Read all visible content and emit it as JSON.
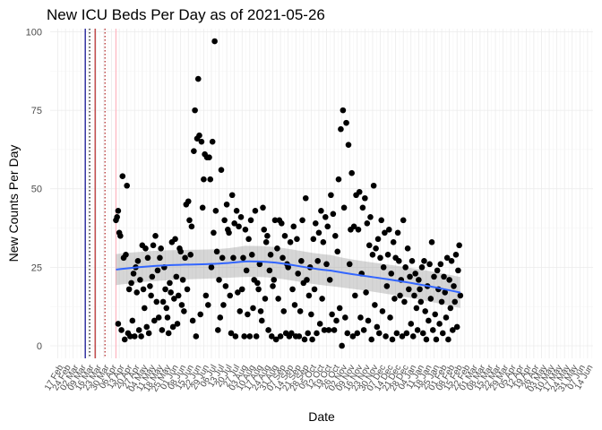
{
  "chart_data": {
    "type": "scatter",
    "title": "New ICU Beds Per Day as of 2021-05-26",
    "xlabel": "Date",
    "ylabel": "New Counts Per Day",
    "ylim": [
      -4,
      101
    ],
    "xlim": [
      "2020-02-10",
      "2021-06-19"
    ],
    "grid": true,
    "y_ticks": [
      0,
      25,
      50,
      75,
      100
    ],
    "x_tick_labels": [
      "17 Feb",
      "24 Feb",
      "02 Mar",
      "09 Mar",
      "16 Mar",
      "23 Mar",
      "30 Mar",
      "06 Apr",
      "13 Apr",
      "20 Apr",
      "27 Apr",
      "04 May",
      "11 May",
      "18 May",
      "25 May",
      "01 Jun",
      "08 Jun",
      "15 Jun",
      "22 Jun",
      "29 Jun",
      "06 Jul",
      "13 Jul",
      "20 Jul",
      "27 Jul",
      "03 Aug",
      "10 Aug",
      "17 Aug",
      "24 Aug",
      "31 Aug",
      "07 Sep",
      "14 Sep",
      "21 Sep",
      "28 Sep",
      "05 Oct",
      "12 Oct",
      "19 Oct",
      "26 Oct",
      "02 Nov",
      "09 Nov",
      "16 Nov",
      "23 Nov",
      "30 Nov",
      "07 Dec",
      "14 Dec",
      "21 Dec",
      "28 Dec",
      "04 Jan",
      "11 Jan",
      "18 Jan",
      "25 Jan",
      "01 Feb",
      "08 Feb",
      "15 Feb",
      "22 Feb",
      "01 Mar",
      "08 Mar",
      "15 Mar",
      "22 Mar",
      "29 Mar",
      "05 Apr",
      "12 Apr",
      "19 Apr",
      "26 Apr",
      "03 May",
      "10 May",
      "17 May",
      "24 May",
      "31 May",
      "07 Jun",
      "14 Jun"
    ],
    "vlines": [
      {
        "date": "2020-03-13",
        "color": "#00008b",
        "style": "solid"
      },
      {
        "date": "2020-03-17",
        "color": "#000000",
        "style": "dotted"
      },
      {
        "date": "2020-03-22",
        "color": "#b22222",
        "style": "solid"
      },
      {
        "date": "2020-03-31",
        "color": "#b22222",
        "style": "dotted"
      },
      {
        "date": "2020-04-10",
        "color": "#ffb6c1",
        "style": "solid"
      }
    ],
    "points": [
      [
        "2020-04-10",
        40
      ],
      [
        "2020-04-11",
        41
      ],
      [
        "2020-04-12",
        43
      ],
      [
        "2020-04-13",
        36
      ],
      [
        "2020-04-14",
        35
      ],
      [
        "2020-04-12",
        7
      ],
      [
        "2020-04-15",
        5
      ],
      [
        "2020-04-16",
        54
      ],
      [
        "2020-04-17",
        28
      ],
      [
        "2020-04-18",
        2
      ],
      [
        "2020-04-19",
        29
      ],
      [
        "2020-04-20",
        51
      ],
      [
        "2020-04-21",
        4
      ],
      [
        "2020-04-22",
        18
      ],
      [
        "2020-04-23",
        3
      ],
      [
        "2020-04-24",
        20
      ],
      [
        "2020-04-25",
        8
      ],
      [
        "2020-04-26",
        23
      ],
      [
        "2020-04-27",
        3
      ],
      [
        "2020-04-28",
        25
      ],
      [
        "2020-04-29",
        17
      ],
      [
        "2020-04-30",
        27
      ],
      [
        "2020-05-01",
        5
      ],
      [
        "2020-05-02",
        21
      ],
      [
        "2020-05-03",
        3
      ],
      [
        "2020-05-04",
        32
      ],
      [
        "2020-05-05",
        18
      ],
      [
        "2020-05-06",
        12
      ],
      [
        "2020-05-07",
        31
      ],
      [
        "2020-05-08",
        6
      ],
      [
        "2020-05-09",
        28
      ],
      [
        "2020-05-10",
        4
      ],
      [
        "2020-05-11",
        19
      ],
      [
        "2020-05-12",
        16
      ],
      [
        "2020-05-13",
        22
      ],
      [
        "2020-05-14",
        32
      ],
      [
        "2020-05-15",
        8
      ],
      [
        "2020-05-16",
        35
      ],
      [
        "2020-05-17",
        14
      ],
      [
        "2020-05-18",
        24
      ],
      [
        "2020-05-19",
        9
      ],
      [
        "2020-05-20",
        28
      ],
      [
        "2020-05-21",
        31
      ],
      [
        "2020-05-22",
        5
      ],
      [
        "2020-05-23",
        14
      ],
      [
        "2020-05-24",
        25
      ],
      [
        "2020-05-25",
        18
      ],
      [
        "2020-05-26",
        12
      ],
      [
        "2020-05-27",
        9
      ],
      [
        "2020-05-28",
        4
      ],
      [
        "2020-05-29",
        20
      ],
      [
        "2020-05-30",
        17
      ],
      [
        "2020-05-31",
        33
      ],
      [
        "2020-06-01",
        6
      ],
      [
        "2020-06-02",
        15
      ],
      [
        "2020-06-03",
        34
      ],
      [
        "2020-06-04",
        22
      ],
      [
        "2020-06-05",
        7
      ],
      [
        "2020-06-06",
        16
      ],
      [
        "2020-06-07",
        31
      ],
      [
        "2020-06-08",
        30
      ],
      [
        "2020-06-09",
        13
      ],
      [
        "2020-06-10",
        21
      ],
      [
        "2020-06-11",
        11
      ],
      [
        "2020-06-12",
        28
      ],
      [
        "2020-06-13",
        45
      ],
      [
        "2020-06-14",
        18
      ],
      [
        "2020-06-15",
        46
      ],
      [
        "2020-06-16",
        40
      ],
      [
        "2020-06-17",
        29
      ],
      [
        "2020-06-18",
        38
      ],
      [
        "2020-06-19",
        8
      ],
      [
        "2020-06-20",
        62
      ],
      [
        "2020-06-21",
        75
      ],
      [
        "2020-06-22",
        3
      ],
      [
        "2020-06-23",
        66
      ],
      [
        "2020-06-24",
        85
      ],
      [
        "2020-06-25",
        67
      ],
      [
        "2020-06-26",
        10
      ],
      [
        "2020-06-27",
        65
      ],
      [
        "2020-06-28",
        44
      ],
      [
        "2020-06-29",
        53
      ],
      [
        "2020-06-30",
        61
      ],
      [
        "2020-07-01",
        16
      ],
      [
        "2020-07-02",
        60
      ],
      [
        "2020-07-03",
        13
      ],
      [
        "2020-07-04",
        60
      ],
      [
        "2020-07-05",
        53
      ],
      [
        "2020-07-06",
        25
      ],
      [
        "2020-07-07",
        65
      ],
      [
        "2020-07-08",
        36
      ],
      [
        "2020-07-09",
        97
      ],
      [
        "2020-07-10",
        43
      ],
      [
        "2020-07-11",
        30
      ],
      [
        "2020-07-12",
        5
      ],
      [
        "2020-07-13",
        21
      ],
      [
        "2020-07-14",
        9
      ],
      [
        "2020-07-15",
        56
      ],
      [
        "2020-07-16",
        28
      ],
      [
        "2020-07-17",
        13
      ],
      [
        "2020-07-18",
        40
      ],
      [
        "2020-07-19",
        19
      ],
      [
        "2020-07-20",
        45
      ],
      [
        "2020-07-21",
        37
      ],
      [
        "2020-07-22",
        36
      ],
      [
        "2020-07-23",
        16
      ],
      [
        "2020-07-24",
        4
      ],
      [
        "2020-07-25",
        48
      ],
      [
        "2020-07-26",
        28
      ],
      [
        "2020-07-27",
        39
      ],
      [
        "2020-07-28",
        3
      ],
      [
        "2020-07-29",
        43
      ],
      [
        "2020-07-30",
        17
      ],
      [
        "2020-07-31",
        38
      ],
      [
        "2020-08-01",
        11
      ],
      [
        "2020-08-02",
        41
      ],
      [
        "2020-08-03",
        18
      ],
      [
        "2020-08-04",
        28
      ],
      [
        "2020-08-05",
        3
      ],
      [
        "2020-08-06",
        37
      ],
      [
        "2020-08-07",
        24
      ],
      [
        "2020-08-08",
        10
      ],
      [
        "2020-08-09",
        34
      ],
      [
        "2020-08-10",
        3
      ],
      [
        "2020-08-11",
        40
      ],
      [
        "2020-08-12",
        29
      ],
      [
        "2020-08-13",
        12
      ],
      [
        "2020-08-14",
        21
      ],
      [
        "2020-08-15",
        43
      ],
      [
        "2020-08-16",
        3
      ],
      [
        "2020-08-17",
        20
      ],
      [
        "2020-08-18",
        18
      ],
      [
        "2020-08-19",
        26
      ],
      [
        "2020-08-20",
        11
      ],
      [
        "2020-08-21",
        8
      ],
      [
        "2020-08-22",
        44
      ],
      [
        "2020-08-23",
        37
      ],
      [
        "2020-08-24",
        15
      ],
      [
        "2020-08-25",
        33
      ],
      [
        "2020-08-26",
        35
      ],
      [
        "2020-08-27",
        5
      ],
      [
        "2020-08-28",
        24
      ],
      [
        "2020-08-29",
        29
      ],
      [
        "2020-08-30",
        3
      ],
      [
        "2020-08-31",
        19
      ],
      [
        "2020-09-01",
        21
      ],
      [
        "2020-09-02",
        40
      ],
      [
        "2020-09-03",
        2
      ],
      [
        "2020-09-04",
        31
      ],
      [
        "2020-09-05",
        15
      ],
      [
        "2020-09-06",
        40
      ],
      [
        "2020-09-07",
        3
      ],
      [
        "2020-09-08",
        39
      ],
      [
        "2020-09-09",
        28
      ],
      [
        "2020-09-10",
        11
      ],
      [
        "2020-09-11",
        35
      ],
      [
        "2020-09-12",
        4
      ],
      [
        "2020-09-13",
        26
      ],
      [
        "2020-09-14",
        25
      ],
      [
        "2020-09-15",
        3
      ],
      [
        "2020-09-16",
        33
      ],
      [
        "2020-09-17",
        4
      ],
      [
        "2020-09-18",
        18
      ],
      [
        "2020-09-19",
        38
      ],
      [
        "2020-09-20",
        13
      ],
      [
        "2020-09-21",
        3
      ],
      [
        "2020-09-22",
        34
      ],
      [
        "2020-09-23",
        23
      ],
      [
        "2020-09-24",
        3
      ],
      [
        "2020-09-25",
        11
      ],
      [
        "2020-09-26",
        27
      ],
      [
        "2020-09-27",
        40
      ],
      [
        "2020-09-28",
        20
      ],
      [
        "2020-09-29",
        2
      ],
      [
        "2020-09-30",
        47
      ],
      [
        "2020-10-01",
        21
      ],
      [
        "2020-10-02",
        4
      ],
      [
        "2020-10-03",
        16
      ],
      [
        "2020-10-04",
        25
      ],
      [
        "2020-10-05",
        10
      ],
      [
        "2020-10-06",
        2
      ],
      [
        "2020-10-07",
        34
      ],
      [
        "2020-10-08",
        18
      ],
      [
        "2020-10-09",
        39
      ],
      [
        "2020-10-10",
        4
      ],
      [
        "2020-10-11",
        27
      ],
      [
        "2020-10-12",
        36
      ],
      [
        "2020-10-13",
        7
      ],
      [
        "2020-10-14",
        43
      ],
      [
        "2020-10-15",
        15
      ],
      [
        "2020-10-16",
        33
      ],
      [
        "2020-10-17",
        5
      ],
      [
        "2020-10-18",
        41
      ],
      [
        "2020-10-19",
        26
      ],
      [
        "2020-10-20",
        38
      ],
      [
        "2020-10-21",
        5
      ],
      [
        "2020-10-22",
        21
      ],
      [
        "2020-10-23",
        48
      ],
      [
        "2020-10-24",
        10
      ],
      [
        "2020-10-25",
        42
      ],
      [
        "2020-10-26",
        5
      ],
      [
        "2020-10-27",
        35
      ],
      [
        "2020-10-28",
        8
      ],
      [
        "2020-10-29",
        30
      ],
      [
        "2020-10-30",
        53
      ],
      [
        "2020-10-31",
        12
      ],
      [
        "2020-11-01",
        69
      ],
      [
        "2020-11-02",
        0
      ],
      [
        "2020-11-03",
        75
      ],
      [
        "2020-11-04",
        44
      ],
      [
        "2020-11-05",
        9
      ],
      [
        "2020-11-06",
        71
      ],
      [
        "2020-11-07",
        4
      ],
      [
        "2020-11-08",
        64
      ],
      [
        "2020-11-09",
        26
      ],
      [
        "2020-11-10",
        37
      ],
      [
        "2020-11-11",
        55
      ],
      [
        "2020-11-12",
        3
      ],
      [
        "2020-11-13",
        38
      ],
      [
        "2020-11-14",
        16
      ],
      [
        "2020-11-15",
        48
      ],
      [
        "2020-11-16",
        4
      ],
      [
        "2020-11-17",
        37
      ],
      [
        "2020-11-18",
        49
      ],
      [
        "2020-11-19",
        9
      ],
      [
        "2020-11-20",
        23
      ],
      [
        "2020-11-21",
        44
      ],
      [
        "2020-11-22",
        5
      ],
      [
        "2020-11-23",
        47
      ],
      [
        "2020-11-24",
        17
      ],
      [
        "2020-11-25",
        39
      ],
      [
        "2020-11-26",
        8
      ],
      [
        "2020-11-27",
        32
      ],
      [
        "2020-11-28",
        41
      ],
      [
        "2020-11-29",
        2
      ],
      [
        "2020-11-30",
        29
      ],
      [
        "2020-12-01",
        51
      ],
      [
        "2020-12-02",
        13
      ],
      [
        "2020-12-03",
        31
      ],
      [
        "2020-12-04",
        6
      ],
      [
        "2020-12-05",
        34
      ],
      [
        "2020-12-06",
        4
      ],
      [
        "2020-12-07",
        28
      ],
      [
        "2020-12-08",
        40
      ],
      [
        "2020-12-09",
        11
      ],
      [
        "2020-12-10",
        25
      ],
      [
        "2020-12-11",
        36
      ],
      [
        "2020-12-12",
        3
      ],
      [
        "2020-12-13",
        19
      ],
      [
        "2020-12-14",
        29
      ],
      [
        "2020-12-15",
        37
      ],
      [
        "2020-12-16",
        9
      ],
      [
        "2020-12-17",
        23
      ],
      [
        "2020-12-18",
        2
      ],
      [
        "2020-12-19",
        33
      ],
      [
        "2020-12-20",
        15
      ],
      [
        "2020-12-21",
        28
      ],
      [
        "2020-12-22",
        4
      ],
      [
        "2020-12-23",
        36
      ],
      [
        "2020-12-24",
        27
      ],
      [
        "2020-12-25",
        16
      ],
      [
        "2020-12-26",
        21
      ],
      [
        "2020-12-27",
        3
      ],
      [
        "2020-12-28",
        40
      ],
      [
        "2020-12-29",
        14
      ],
      [
        "2020-12-30",
        25
      ],
      [
        "2020-12-31",
        4
      ],
      [
        "2021-01-01",
        31
      ],
      [
        "2021-01-02",
        18
      ],
      [
        "2021-01-03",
        22
      ],
      [
        "2021-01-04",
        7
      ],
      [
        "2021-01-05",
        27
      ],
      [
        "2021-01-06",
        3
      ],
      [
        "2021-01-07",
        16
      ],
      [
        "2021-01-08",
        23
      ],
      [
        "2021-01-09",
        12
      ],
      [
        "2021-01-10",
        5
      ],
      [
        "2021-01-11",
        21
      ],
      [
        "2021-01-12",
        18
      ],
      [
        "2021-01-13",
        14
      ],
      [
        "2021-01-14",
        25
      ],
      [
        "2021-01-15",
        4
      ],
      [
        "2021-01-16",
        27
      ],
      [
        "2021-01-17",
        11
      ],
      [
        "2021-01-18",
        2
      ],
      [
        "2021-01-19",
        19
      ],
      [
        "2021-01-20",
        8
      ],
      [
        "2021-01-21",
        26
      ],
      [
        "2021-01-22",
        15
      ],
      [
        "2021-01-23",
        33
      ],
      [
        "2021-01-24",
        5
      ],
      [
        "2021-01-25",
        22
      ],
      [
        "2021-01-26",
        10
      ],
      [
        "2021-01-27",
        2
      ],
      [
        "2021-01-28",
        24
      ],
      [
        "2021-01-29",
        18
      ],
      [
        "2021-01-30",
        7
      ],
      [
        "2021-01-31",
        26
      ],
      [
        "2021-02-01",
        14
      ],
      [
        "2021-02-02",
        4
      ],
      [
        "2021-02-03",
        22
      ],
      [
        "2021-02-04",
        17
      ],
      [
        "2021-02-05",
        9
      ],
      [
        "2021-02-06",
        28
      ],
      [
        "2021-02-07",
        2
      ],
      [
        "2021-02-08",
        21
      ],
      [
        "2021-02-09",
        12
      ],
      [
        "2021-02-10",
        27
      ],
      [
        "2021-02-11",
        5
      ],
      [
        "2021-02-12",
        19
      ],
      [
        "2021-02-13",
        14
      ],
      [
        "2021-02-14",
        29
      ],
      [
        "2021-02-15",
        6
      ],
      [
        "2021-02-16",
        24
      ],
      [
        "2021-02-17",
        32
      ],
      [
        "2021-02-18",
        16
      ]
    ]
  }
}
